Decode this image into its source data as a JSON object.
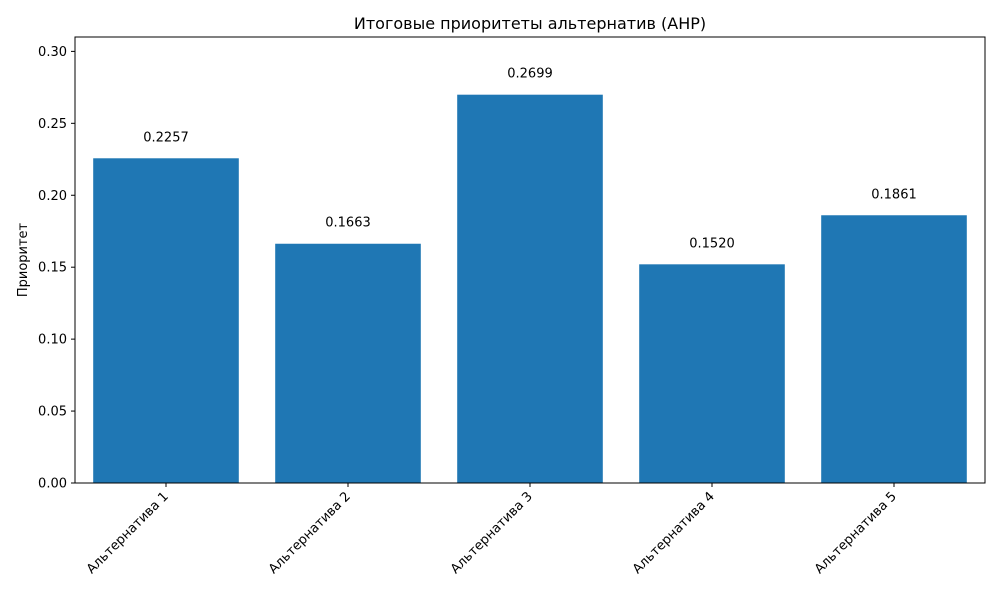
{
  "chart_data": {
    "type": "bar",
    "title": "Итоговые приоритеты альтернатив (AHP)",
    "xlabel": "",
    "ylabel": "Приоритет",
    "categories": [
      "Альтернатива 1",
      "Альтернатива 2",
      "Альтернатива 3",
      "Альтернатива 4",
      "Альтернатива 5"
    ],
    "values": [
      0.2257,
      0.1663,
      0.2699,
      0.152,
      0.1861
    ],
    "value_labels": [
      "0.2257",
      "0.1663",
      "0.2699",
      "0.1520",
      "0.1861"
    ],
    "ylim": [
      0,
      0.31
    ],
    "yticks": [
      0,
      0.05,
      0.1,
      0.15,
      0.2,
      0.25,
      0.3
    ],
    "ytick_labels": [
      "0.00",
      "0.05",
      "0.10",
      "0.15",
      "0.20",
      "0.25",
      "0.30"
    ],
    "bar_color": "#1f77b4",
    "grid": false,
    "legend": "none"
  }
}
